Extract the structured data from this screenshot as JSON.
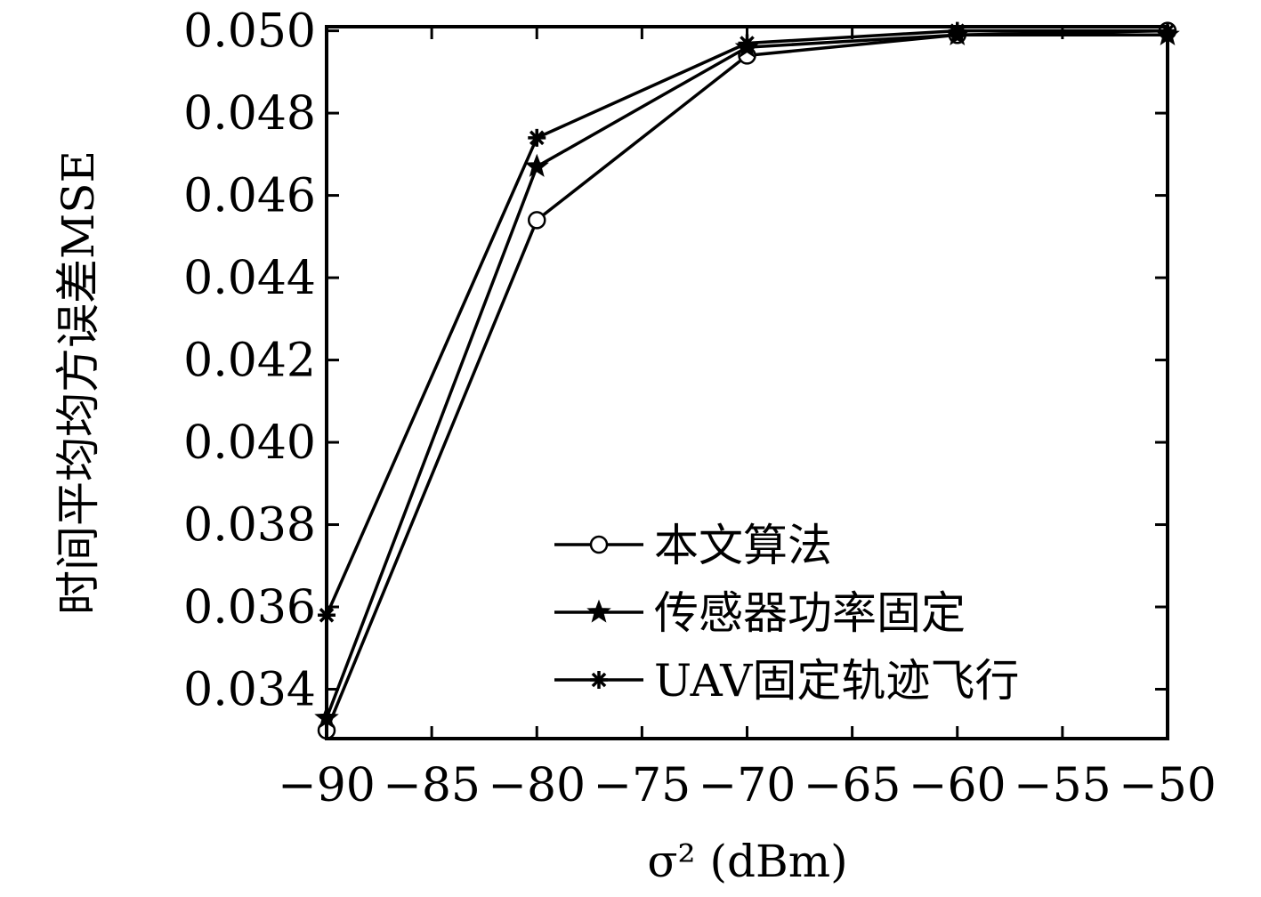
{
  "chart_data": {
    "type": "line",
    "xlabel": "σ² (dBm)",
    "ylabel": "时间平均均方误差MSE",
    "x": [
      -90,
      -80,
      -70,
      -60,
      -50
    ],
    "xlim": [
      -90,
      -50
    ],
    "ylim": [
      0.0328,
      0.0501
    ],
    "xticks": [
      -90,
      -85,
      -80,
      -75,
      -70,
      -65,
      -60,
      -55,
      -50
    ],
    "xtick_labels": [
      "−90",
      "−85",
      "−80",
      "−75",
      "−70",
      "−65",
      "−60",
      "−55",
      "−50"
    ],
    "yticks": [
      0.034,
      0.036,
      0.038,
      0.04,
      0.042,
      0.044,
      0.046,
      0.048,
      0.05
    ],
    "ytick_labels": [
      "0.034",
      "0.036",
      "0.038",
      "0.040",
      "0.042",
      "0.044",
      "0.046",
      "0.048",
      "0.050"
    ],
    "grid": false,
    "legend_position": "bottom-right",
    "series": [
      {
        "name": "本文算法",
        "marker": "circle",
        "color": "#000000",
        "values": [
          0.033,
          0.0454,
          0.0494,
          0.0499,
          0.05
        ]
      },
      {
        "name": "传感器功率固定",
        "marker": "star",
        "color": "#000000",
        "values": [
          0.0333,
          0.0467,
          0.0496,
          0.0499,
          0.0499
        ]
      },
      {
        "name": "UAV固定轨迹飞行",
        "marker": "asterisk",
        "color": "#000000",
        "values": [
          0.0358,
          0.0474,
          0.0497,
          0.05,
          0.05
        ]
      }
    ]
  }
}
